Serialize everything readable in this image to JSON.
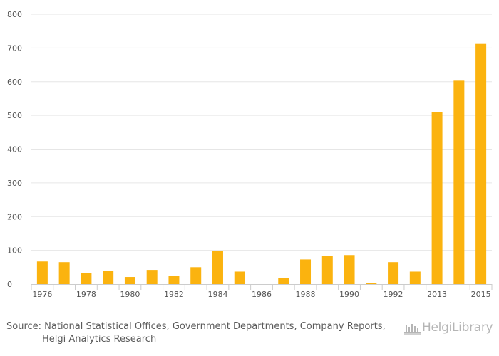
{
  "chart_data": {
    "type": "bar",
    "title": "",
    "xlabel": "",
    "ylabel": "",
    "ylim": [
      0,
      800
    ],
    "yticks": [
      0,
      100,
      200,
      300,
      400,
      500,
      600,
      700,
      800
    ],
    "categories": [
      "1976",
      "1977",
      "1978",
      "1979",
      "1980",
      "1981",
      "1982",
      "1983",
      "1984",
      "1985",
      "1986",
      "1987",
      "1988",
      "1989",
      "1990",
      "1991",
      "1992",
      "1993",
      "2013",
      "2014",
      "2015"
    ],
    "shown_tick_labels": [
      "1976",
      "1978",
      "1980",
      "1982",
      "1984",
      "1986",
      "1988",
      "1990",
      "1992",
      "2013",
      "2015"
    ],
    "values": [
      67,
      65,
      32,
      38,
      21,
      42,
      25,
      50,
      99,
      37,
      0,
      19,
      73,
      84,
      86,
      4,
      65,
      37,
      510,
      603,
      712
    ],
    "bar_color": "#FBB30F",
    "grid": true
  },
  "source": {
    "line1": "Source: National Statistical Offices, Government Departments, Company Reports,",
    "line2": "Helgi Analytics Research"
  },
  "logo": {
    "text": "HelgiLibrary"
  },
  "colors": {
    "grid": "#e6e6e6",
    "axis": "#cccccc",
    "text": "#555555",
    "logo": "#b5b5b5"
  }
}
